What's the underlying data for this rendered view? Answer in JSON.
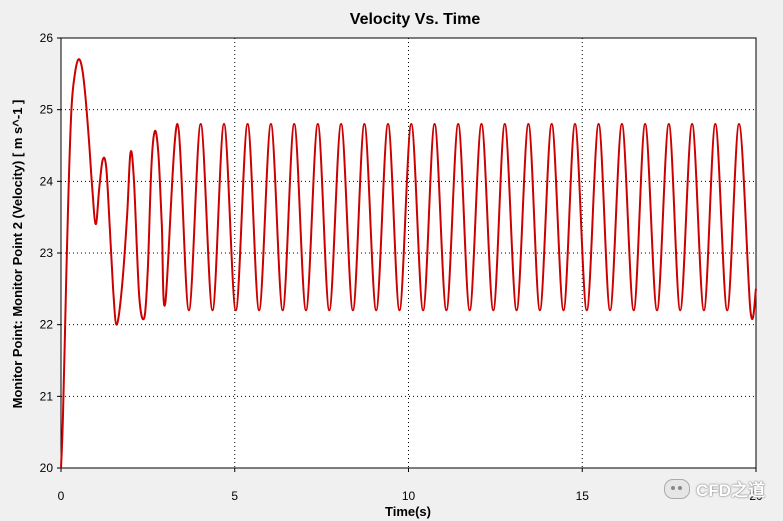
{
  "chart_data": {
    "type": "line",
    "title": "Velocity Vs. Time",
    "xlabel": "Time(s)",
    "ylabel": "Monitor Point: Monitor Point 2 (Velocity) [ m s^-1 ]",
    "xlim": [
      0,
      20
    ],
    "ylim": [
      20,
      26
    ],
    "xticks": [
      0,
      5,
      10,
      15,
      20
    ],
    "yticks": [
      20,
      21,
      22,
      23,
      24,
      25,
      26
    ],
    "grid": true,
    "legend": "none",
    "series": [
      {
        "color": "#cc0000",
        "x": [
          0.0,
          0.05,
          0.1,
          0.2,
          0.3,
          0.4,
          0.5,
          0.6,
          0.7,
          0.8,
          0.9,
          1.0,
          1.1,
          1.2,
          1.3,
          1.4,
          1.5,
          1.6,
          1.75,
          1.9,
          2.0,
          2.1,
          2.25,
          2.4,
          2.5,
          2.6,
          2.7,
          2.8,
          2.9,
          3.0,
          3.35,
          3.68,
          4.02,
          4.36,
          4.69,
          5.03,
          5.37,
          5.7,
          6.04,
          6.38,
          6.71,
          7.05,
          7.39,
          7.72,
          8.06,
          8.4,
          8.73,
          9.07,
          9.41,
          9.74,
          10.08,
          10.42,
          10.75,
          11.09,
          11.43,
          11.76,
          12.1,
          12.44,
          12.77,
          13.11,
          13.45,
          13.78,
          14.12,
          14.46,
          14.79,
          15.13,
          15.47,
          15.8,
          16.14,
          16.48,
          16.81,
          17.15,
          17.49,
          17.82,
          18.16,
          18.5,
          18.83,
          19.17,
          19.51,
          19.84,
          20.0
        ],
        "y": [
          20.0,
          20.6,
          21.6,
          23.6,
          25.0,
          25.5,
          25.7,
          25.6,
          25.2,
          24.6,
          23.9,
          23.4,
          23.9,
          24.3,
          24.2,
          23.4,
          22.5,
          22.0,
          22.5,
          23.5,
          24.4,
          24.0,
          22.4,
          22.1,
          22.8,
          24.2,
          24.7,
          24.4,
          23.4,
          22.3,
          24.8,
          22.2,
          24.8,
          22.2,
          24.8,
          22.2,
          24.8,
          22.2,
          24.8,
          22.2,
          24.8,
          22.2,
          24.8,
          22.2,
          24.8,
          22.2,
          24.8,
          22.2,
          24.8,
          22.2,
          24.8,
          22.2,
          24.8,
          22.2,
          24.8,
          22.2,
          24.8,
          22.2,
          24.8,
          22.2,
          24.8,
          22.2,
          24.8,
          22.2,
          24.8,
          22.2,
          24.8,
          22.2,
          24.8,
          22.2,
          24.8,
          22.2,
          24.8,
          22.2,
          24.8,
          22.2,
          24.8,
          22.2,
          24.8,
          22.2,
          22.5
        ]
      }
    ]
  },
  "watermark": {
    "text": "CFD之道",
    "icon": "wechat-icon"
  }
}
